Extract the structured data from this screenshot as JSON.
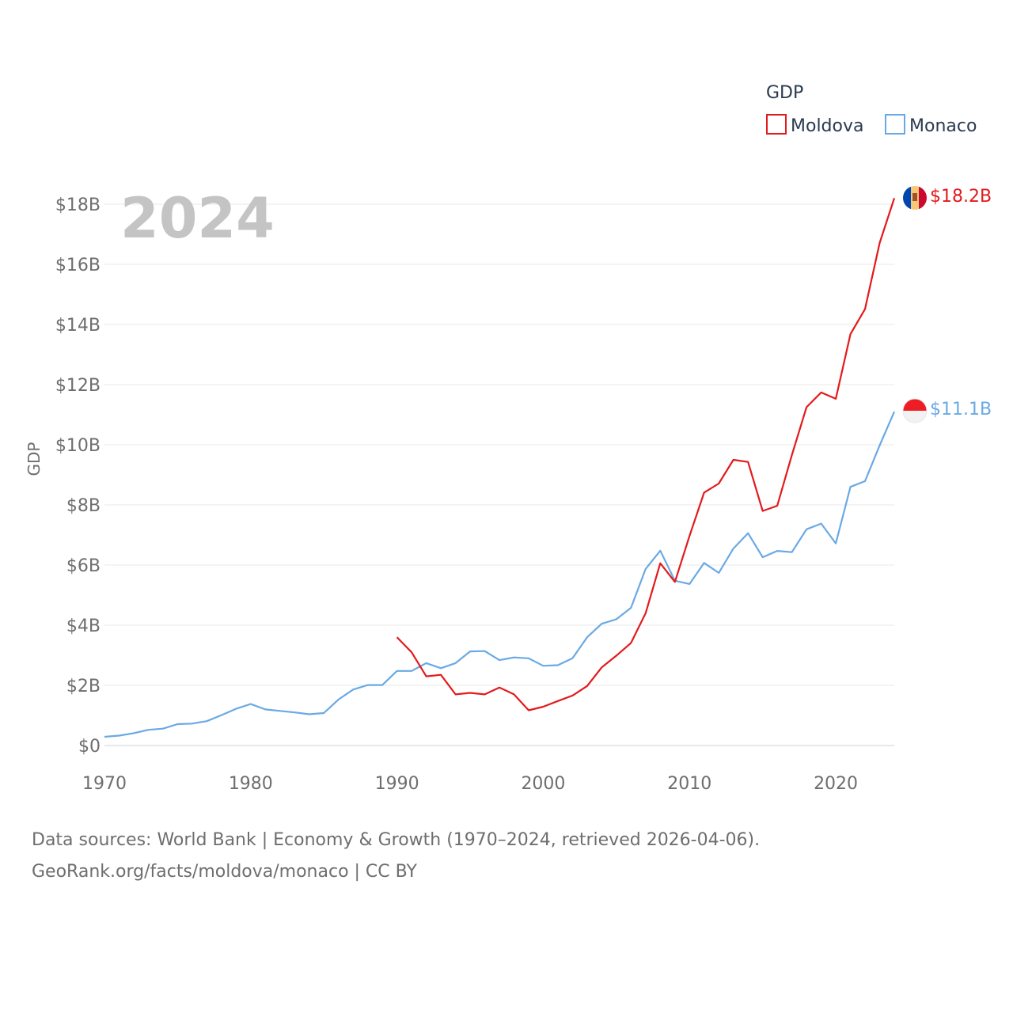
{
  "chart_data": {
    "type": "line",
    "year_watermark": "2024",
    "ylabel": "GDP",
    "legend": {
      "title": "GDP",
      "placement": "top-right",
      "entries": [
        "Moldova",
        "Monaco"
      ]
    },
    "xlim": [
      1970,
      2024
    ],
    "ylim": [
      0,
      18.8
    ],
    "x_ticks": [
      1970,
      1980,
      1990,
      2000,
      2010,
      2020
    ],
    "x_tick_labels": [
      "1970",
      "1980",
      "1990",
      "2000",
      "2010",
      "2020"
    ],
    "y_ticks": [
      0,
      2,
      4,
      6,
      8,
      10,
      12,
      14,
      16,
      18
    ],
    "y_tick_labels": [
      "$0",
      "$2B",
      "$4B",
      "$6B",
      "$8B",
      "$10B",
      "$12B",
      "$14B",
      "$16B",
      "$18B"
    ],
    "series": [
      {
        "name": "Moldova",
        "color": "#e31a1c",
        "icon": "moldova-flag-icon",
        "end_label": "$18.2B",
        "x": [
          1990,
          1991,
          1992,
          1993,
          1994,
          1995,
          1996,
          1997,
          1998,
          1999,
          2000,
          2001,
          2002,
          2003,
          2004,
          2005,
          2006,
          2007,
          2008,
          2009,
          2010,
          2011,
          2012,
          2013,
          2014,
          2015,
          2016,
          2017,
          2018,
          2019,
          2020,
          2021,
          2022,
          2023,
          2024
        ],
        "values": [
          3.6,
          3.1,
          2.3,
          2.35,
          1.7,
          1.75,
          1.7,
          1.93,
          1.7,
          1.17,
          1.29,
          1.48,
          1.66,
          1.98,
          2.6,
          2.99,
          3.41,
          4.4,
          6.06,
          5.44,
          6.97,
          8.41,
          8.71,
          9.5,
          9.43,
          7.8,
          7.97,
          9.66,
          11.25,
          11.74,
          11.53,
          13.68,
          14.51,
          16.71,
          18.2
        ]
      },
      {
        "name": "Monaco",
        "color": "#6aa9e4",
        "icon": "monaco-flag-icon",
        "end_label": "$11.1B",
        "x": [
          1970,
          1971,
          1972,
          1973,
          1974,
          1975,
          1976,
          1977,
          1978,
          1979,
          1980,
          1981,
          1982,
          1983,
          1984,
          1985,
          1986,
          1987,
          1988,
          1989,
          1990,
          1991,
          1992,
          1993,
          1994,
          1995,
          1996,
          1997,
          1998,
          1999,
          2000,
          2001,
          2002,
          2003,
          2004,
          2005,
          2006,
          2007,
          2008,
          2009,
          2010,
          2011,
          2012,
          2013,
          2014,
          2015,
          2016,
          2017,
          2018,
          2019,
          2020,
          2021,
          2022,
          2023,
          2024
        ],
        "values": [
          0.29,
          0.33,
          0.41,
          0.52,
          0.56,
          0.71,
          0.73,
          0.81,
          1.01,
          1.22,
          1.38,
          1.2,
          1.15,
          1.1,
          1.04,
          1.08,
          1.53,
          1.86,
          2.01,
          2.01,
          2.48,
          2.48,
          2.74,
          2.57,
          2.74,
          3.13,
          3.14,
          2.84,
          2.93,
          2.9,
          2.65,
          2.67,
          2.9,
          3.6,
          4.05,
          4.2,
          4.58,
          5.87,
          6.48,
          5.48,
          5.37,
          6.07,
          5.74,
          6.55,
          7.06,
          6.26,
          6.47,
          6.43,
          7.19,
          7.38,
          6.72,
          8.6,
          8.79,
          9.98,
          11.1
        ]
      }
    ]
  },
  "footer": {
    "line1": "Data sources: World Bank | Economy & Growth (1970–2024, retrieved 2026-04-06).",
    "line2": "GeoRank.org/facts/moldova/monaco | CC BY"
  }
}
